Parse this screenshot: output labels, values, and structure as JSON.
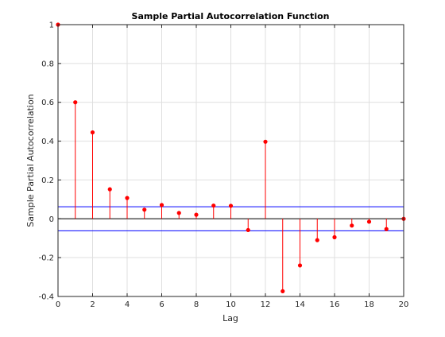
{
  "chart_data": {
    "type": "stem",
    "title": "Sample Partial Autocorrelation Function",
    "xlabel": "Lag",
    "ylabel": "Sample Partial Autocorrelation",
    "xlim": [
      0,
      20
    ],
    "ylim": [
      -0.4,
      1
    ],
    "xticks": [
      "0",
      "2",
      "4",
      "6",
      "8",
      "10",
      "12",
      "14",
      "16",
      "18",
      "20"
    ],
    "yticks": [
      "-0.4",
      "-0.2",
      "0",
      "0.2",
      "0.4",
      "0.6",
      "0.8",
      "1"
    ],
    "grid": true,
    "series": [
      {
        "color": "#ff0000",
        "x": [
          0,
          1,
          2,
          3,
          4,
          5,
          6,
          7,
          8,
          9,
          10,
          11,
          12,
          13,
          14,
          15,
          16,
          17,
          18,
          19,
          20
        ],
        "values": [
          1.0,
          0.6,
          0.445,
          0.152,
          0.107,
          0.047,
          0.071,
          0.03,
          0.021,
          0.068,
          0.067,
          -0.058,
          0.397,
          -0.373,
          -0.24,
          -0.11,
          -0.095,
          -0.035,
          -0.015,
          -0.053,
          0.0
        ]
      }
    ],
    "confidence_bounds": {
      "color": "#0000ff",
      "upper": 0.062,
      "lower": -0.062
    }
  }
}
